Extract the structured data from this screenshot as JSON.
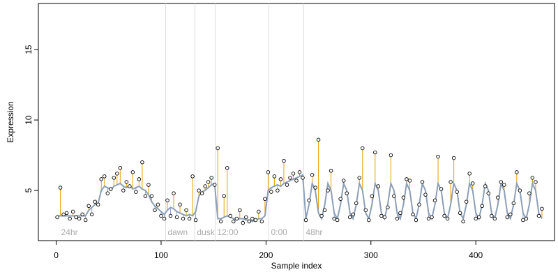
{
  "chart_data": {
    "type": "scatter",
    "x_label": "Sample index",
    "y_label": "Expression",
    "xlim": [
      -17,
      475
    ],
    "ylim": [
      1.44,
      18.27
    ],
    "xticks": [
      0,
      100,
      200,
      300,
      400
    ],
    "yticks": [
      5,
      10,
      15
    ],
    "annotations": [
      {
        "x": 2.7,
        "label": "24hr"
      },
      {
        "x": 104.3,
        "label": "dawn"
      },
      {
        "x": 132.2,
        "label": "dusk"
      },
      {
        "x": 151.5,
        "label": "12:00"
      },
      {
        "x": 202.7,
        "label": "0:00"
      },
      {
        "x": 235.9,
        "label": "48hr"
      }
    ],
    "x": [
      1,
      4,
      7,
      10,
      13,
      16,
      19,
      22,
      25,
      28,
      31,
      34,
      37,
      40,
      43,
      46,
      49,
      52,
      55,
      58,
      61,
      64,
      67,
      70,
      73,
      76,
      79,
      82,
      85,
      88,
      91,
      94,
      97,
      100,
      103,
      106,
      109,
      112,
      115,
      118,
      121,
      124,
      127,
      130,
      133,
      136,
      139,
      142,
      145,
      148,
      151,
      154,
      157,
      160,
      163,
      166,
      169,
      172,
      175,
      178,
      181,
      184,
      187,
      190,
      193,
      196,
      199,
      202,
      205,
      208,
      211,
      214,
      217,
      220,
      223,
      226,
      229,
      232,
      235,
      238,
      241,
      244,
      247,
      250,
      253,
      256,
      259,
      262,
      265,
      268,
      271,
      274,
      277,
      280,
      283,
      286,
      289,
      292,
      295,
      298,
      301,
      304,
      307,
      310,
      313,
      316,
      319,
      322,
      325,
      328,
      331,
      334,
      337,
      340,
      343,
      346,
      349,
      352,
      355,
      358,
      361,
      364,
      367,
      370,
      373,
      376,
      379,
      382,
      385,
      388,
      391,
      394,
      397,
      400,
      403,
      406,
      409,
      412,
      415,
      418,
      421,
      424,
      427,
      430,
      433,
      436,
      439,
      442,
      445,
      448,
      451,
      454,
      457,
      460,
      463
    ],
    "series": [
      {
        "color": "#000000",
        "values": [
          3.1,
          5.2,
          3.3,
          3.4,
          3.0,
          3.5,
          3.1,
          3.0,
          3.3,
          2.9,
          3.9,
          3.3,
          4.2,
          4.0,
          5.8,
          6.0,
          4.8,
          5.1,
          5.9,
          6.2,
          6.6,
          5.0,
          5.6,
          5.3,
          6.3,
          4.9,
          5.8,
          7.0,
          4.6,
          5.4,
          4.6,
          3.6,
          4.0,
          3.2,
          3.0,
          4.3,
          3.2,
          4.8,
          3.1,
          4.0,
          3.0,
          3.6,
          3.0,
          6.0,
          2.9,
          5.0,
          4.8,
          5.3,
          5.6,
          5.9,
          5.4,
          8.0,
          2.8,
          4.6,
          6.6,
          3.2,
          2.8,
          3.0,
          3.6,
          2.7,
          3.1,
          2.8,
          3.0,
          2.9,
          3.5,
          2.8,
          4.4,
          6.3,
          4.9,
          6.0,
          5.0,
          5.8,
          7.1,
          5.4,
          5.9,
          6.2,
          5.7,
          6.3,
          5.9,
          2.9,
          4.3,
          6.1,
          5.2,
          8.6,
          3.2,
          3.6,
          5.0,
          6.4,
          3.0,
          2.9,
          4.4,
          5.7,
          4.8,
          3.1,
          3.3,
          4.1,
          5.9,
          8.0,
          3.6,
          2.9,
          4.6,
          7.7,
          5.3,
          3.2,
          3.1,
          3.8,
          7.5,
          4.6,
          3.0,
          3.4,
          4.5,
          5.8,
          5.7,
          3.3,
          2.9,
          4.0,
          5.6,
          4.7,
          3.0,
          3.1,
          4.3,
          7.4,
          5.1,
          3.2,
          3.0,
          5.6,
          7.3,
          4.9,
          3.4,
          2.8,
          4.2,
          6.2,
          5.5,
          3.0,
          3.1,
          3.9,
          5.3,
          4.8,
          3.2,
          3.0,
          4.5,
          5.6,
          5.4,
          3.1,
          3.3,
          4.1,
          6.3,
          5.0,
          2.9,
          3.0,
          4.8,
          5.9,
          5.6,
          3.2,
          3.7
        ]
      },
      {
        "color": "#8c9fb8",
        "values": [
          3.2,
          3.2,
          3.2,
          3.2,
          3.2,
          3.2,
          3.2,
          3.2,
          3.2,
          3.2,
          3.6,
          3.8,
          4.0,
          4.1,
          5.0,
          5.3,
          5.2,
          5.0,
          5.3,
          5.4,
          5.5,
          5.3,
          5.2,
          5.4,
          5.1,
          5.2,
          5.3,
          5.1,
          5.0,
          4.7,
          4.2,
          3.9,
          3.7,
          3.5,
          3.3,
          3.6,
          3.8,
          3.7,
          3.5,
          3.4,
          3.3,
          3.2,
          3.3,
          3.2,
          3.5,
          4.6,
          4.9,
          5.0,
          5.2,
          5.4,
          5.5,
          3.0,
          3.0,
          3.1,
          3.2,
          3.1,
          3.0,
          2.9,
          3.0,
          3.0,
          2.9,
          2.9,
          2.8,
          2.9,
          3.0,
          3.0,
          3.2,
          5.0,
          5.2,
          5.3,
          5.4,
          5.3,
          5.5,
          5.6,
          5.7,
          5.8,
          5.9,
          6.0,
          6.1,
          3.0,
          4.0,
          5.5,
          5.0,
          3.4,
          3.0,
          4.0,
          5.5,
          5.0,
          3.4,
          3.0,
          4.0,
          5.5,
          5.0,
          3.4,
          3.0,
          4.0,
          5.5,
          5.0,
          3.4,
          3.0,
          4.0,
          5.5,
          5.0,
          3.4,
          3.0,
          4.0,
          5.5,
          5.0,
          3.4,
          3.0,
          4.0,
          5.5,
          5.0,
          3.4,
          3.0,
          4.0,
          5.5,
          5.0,
          3.4,
          3.0,
          4.0,
          5.5,
          5.0,
          3.4,
          3.0,
          4.0,
          5.5,
          5.0,
          3.4,
          3.0,
          4.0,
          5.5,
          5.0,
          3.4,
          3.0,
          4.0,
          5.5,
          5.0,
          3.4,
          3.0,
          4.0,
          5.5,
          5.0,
          3.4,
          3.0,
          4.0,
          5.5,
          5.0,
          3.4,
          3.0,
          4.0,
          5.5,
          5.0,
          3.4,
          3.0
        ]
      }
    ],
    "residual_colors": {
      "above": "#e69f00",
      "below": "#8fa8d0"
    },
    "annotation_line_color": "#dddddd"
  }
}
